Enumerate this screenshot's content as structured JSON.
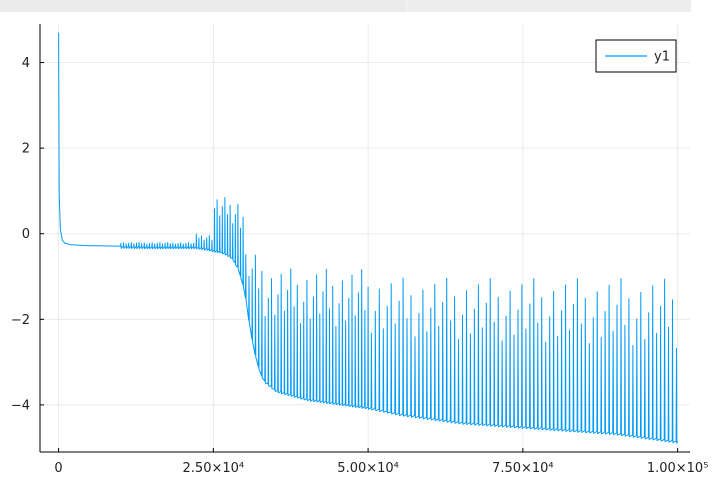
{
  "chart_data": {
    "type": "line",
    "title": "",
    "xlabel": "",
    "ylabel": "",
    "xlim": [
      -3000,
      102000
    ],
    "ylim": [
      -5.1,
      4.9
    ],
    "grid": true,
    "legend_position": "top-right",
    "x_ticks": [
      {
        "value": 0,
        "label": "0"
      },
      {
        "value": 25000,
        "label": "2.50×10⁴"
      },
      {
        "value": 50000,
        "label": "5.00×10⁴"
      },
      {
        "value": 75000,
        "label": "7.50×10⁴"
      },
      {
        "value": 100000,
        "label": "1.00×10⁵"
      }
    ],
    "y_ticks": [
      {
        "value": 4,
        "label": "4"
      },
      {
        "value": 2,
        "label": "2"
      },
      {
        "value": 0,
        "label": "0"
      },
      {
        "value": -2,
        "label": "−2"
      },
      {
        "value": -4,
        "label": "−4"
      }
    ],
    "series": [
      {
        "name": "y1",
        "color": "#009af9",
        "x": [
          0,
          100,
          300,
          600,
          1000,
          2000,
          5000,
          10000,
          15000,
          20000,
          22000,
          23000,
          24000,
          25000,
          26000,
          27000,
          28000,
          29000,
          30000,
          31000,
          32000,
          33000,
          35000,
          40000,
          45000,
          50000,
          55000,
          60000,
          65000,
          70000,
          75000,
          80000,
          85000,
          90000,
          95000,
          100000
        ],
        "y": [
          4.7,
          0.9,
          0.1,
          -0.15,
          -0.22,
          -0.26,
          -0.28,
          -0.29,
          -0.3,
          -0.3,
          -0.3,
          -0.32,
          -0.34,
          -0.38,
          -0.4,
          -0.45,
          -0.55,
          -0.8,
          -1.3,
          -2.3,
          -3.0,
          -3.4,
          -3.65,
          -3.85,
          -3.95,
          -4.05,
          -4.2,
          -4.3,
          -4.4,
          -4.45,
          -4.5,
          -4.55,
          -4.6,
          -4.65,
          -4.75,
          -4.85
        ],
        "spike_peaks": [
          {
            "range": [
              10000,
              22000
            ],
            "peak": -0.2
          },
          {
            "range": [
              22000,
              25000
            ],
            "peak": 0.0
          },
          {
            "range": [
              25000,
              30000
            ],
            "peak": 0.9
          },
          {
            "range": [
              30000,
              33000
            ],
            "peak": -0.4
          },
          {
            "range": [
              33000,
              50000
            ],
            "peak": -0.7
          },
          {
            "range": [
              50000,
              100000
            ],
            "peak": -0.9
          }
        ]
      }
    ]
  }
}
